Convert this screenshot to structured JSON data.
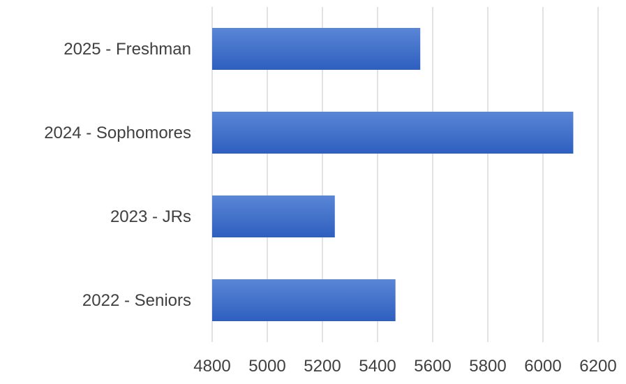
{
  "chart_data": {
    "type": "bar",
    "orientation": "horizontal",
    "categories": [
      "2025 - Freshman",
      "2024 - Sophomores",
      "2023 - JRs",
      "2022 - Seniors"
    ],
    "values": [
      5555,
      6110,
      5245,
      5465
    ],
    "title": "",
    "xlabel": "",
    "ylabel": "",
    "xlim": [
      4800,
      6200
    ],
    "x_ticks": [
      4800,
      5000,
      5200,
      5400,
      5600,
      5800,
      6000,
      6200
    ],
    "grid": true,
    "legend": "none",
    "colors": {
      "bar_top": "#5a86d6",
      "bar_bottom": "#2e5fbf",
      "grid": "#d9d9d9",
      "text": "#404040"
    }
  }
}
